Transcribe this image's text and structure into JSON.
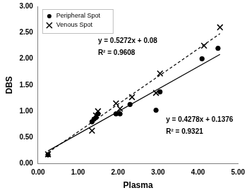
{
  "chart_data": {
    "type": "scatter",
    "x_label": "Plasma",
    "y_label": "DBS",
    "xlim": [
      0,
      5
    ],
    "ylim": [
      0,
      3
    ],
    "xticks": [
      {
        "value": 0,
        "label": "0.00"
      },
      {
        "value": 1,
        "label": "1.00"
      },
      {
        "value": 2,
        "label": "2.00"
      },
      {
        "value": 3,
        "label": "3.00"
      },
      {
        "value": 4,
        "label": "4.00"
      },
      {
        "value": 5,
        "label": "5.00"
      }
    ],
    "yticks": [
      {
        "value": 0,
        "label": "0.00"
      },
      {
        "value": 0.5,
        "label": "0.50"
      },
      {
        "value": 1,
        "label": "1.00"
      },
      {
        "value": 1.5,
        "label": "1.50"
      },
      {
        "value": 2,
        "label": "2.00"
      },
      {
        "value": 2.5,
        "label": "2.50"
      },
      {
        "value": 3,
        "label": "3.00"
      }
    ],
    "grid": false,
    "legend": "top-left",
    "series": [
      {
        "name": "Peripheral Spot",
        "color": "#000000",
        "marker": "circle",
        "x": [
          0.25,
          1.35,
          1.4,
          1.45,
          1.5,
          1.95,
          2.05,
          2.3,
          2.95,
          3.05,
          4.1,
          4.5
        ],
        "values": [
          0.17,
          0.8,
          0.85,
          0.88,
          0.95,
          0.95,
          0.95,
          1.13,
          1.02,
          1.37,
          2.0,
          2.2
        ]
      },
      {
        "name": "Venous Spot",
        "color": "#000000",
        "marker": "x",
        "x": [
          0.25,
          1.35,
          1.45,
          1.5,
          1.95,
          2.05,
          2.35,
          2.95,
          3.05,
          4.15,
          4.55
        ],
        "values": [
          0.18,
          0.63,
          0.92,
          1.0,
          1.15,
          1.05,
          1.27,
          1.35,
          1.72,
          2.25,
          2.6
        ]
      }
    ],
    "trendlines": [
      {
        "series": "Venous Spot",
        "slope": 0.5272,
        "intercept": 0.08,
        "x": [
          0.25,
          4.55
        ],
        "line_style": "dashed",
        "color": "#000000",
        "annotations": [
          "y = 0.5272x + 0.08",
          "R² = 0.9608"
        ]
      },
      {
        "series": "Peripheral Spot",
        "slope": 0.4278,
        "intercept": 0.1376,
        "x": [
          0.25,
          4.55
        ],
        "line_style": "solid",
        "color": "#000000",
        "annotations": [
          "y = 0.4278x + 0.1376",
          "R² = 0.9321"
        ]
      }
    ]
  }
}
